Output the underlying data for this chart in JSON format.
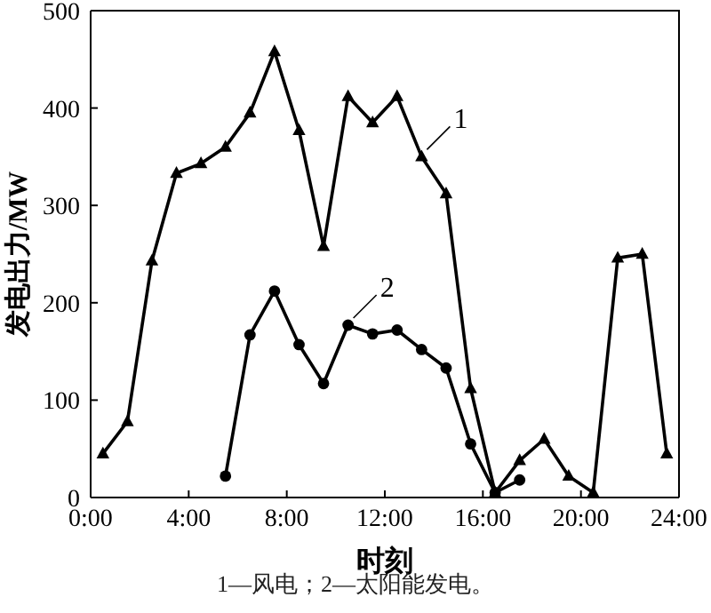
{
  "chart_data": {
    "type": "line",
    "xlabel": "时刻",
    "ylabel": "发电出力/MW",
    "annotations": [
      "1—风电；2—太阳能发电。"
    ],
    "xlim": [
      0,
      24
    ],
    "xticks": [
      {
        "value": 0,
        "label": "0:00"
      },
      {
        "value": 4,
        "label": "4:00"
      },
      {
        "value": 8,
        "label": "8:00"
      },
      {
        "value": 12,
        "label": "12:00"
      },
      {
        "value": 16,
        "label": "16:00"
      },
      {
        "value": 20,
        "label": "20:00"
      },
      {
        "value": 24,
        "label": "24:00"
      }
    ],
    "ylim": [
      0,
      500
    ],
    "yticks": [
      0,
      100,
      200,
      300,
      400,
      500
    ],
    "grid": false,
    "legend": "top right",
    "line_style": "solid",
    "series": [
      {
        "name": "1",
        "color": "#000000",
        "marker": "triangle",
        "x": [
          0.5,
          1.5,
          2.5,
          3.5,
          4.5,
          5.5,
          6.5,
          7.5,
          8.5,
          9.5,
          10.5,
          11.5,
          12.5,
          13.5,
          14.5,
          15.5,
          16.5,
          17.5,
          18.5,
          19.5,
          20.5,
          21.5,
          22.5,
          23.5
        ],
        "values": [
          45,
          78,
          243,
          333,
          343,
          360,
          395,
          458,
          377,
          258,
          412,
          385,
          412,
          350,
          312,
          112,
          5,
          38,
          60,
          22,
          5,
          246,
          250,
          45
        ]
      },
      {
        "name": "2",
        "color": "#000000",
        "marker": "circle",
        "x": [
          5.5,
          6.5,
          7.5,
          8.5,
          9.5,
          10.5,
          11.5,
          12.5,
          13.5,
          14.5,
          15.5,
          16.5,
          17.5
        ],
        "values": [
          22,
          167,
          212,
          157,
          117,
          177,
          168,
          172,
          152,
          133,
          55,
          5,
          18
        ]
      }
    ]
  }
}
